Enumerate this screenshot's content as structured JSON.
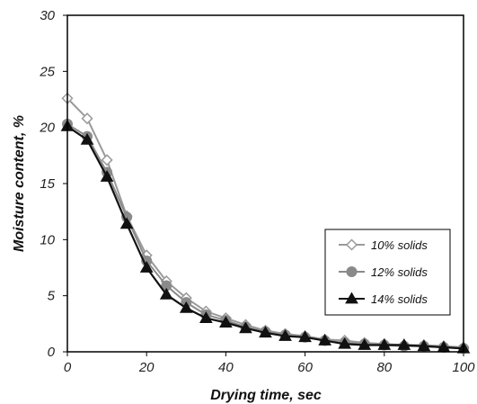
{
  "chart_data": {
    "type": "line",
    "title": "",
    "xlabel": "Drying time, sec",
    "ylabel": "Moisture content, %",
    "xlim": [
      0,
      100
    ],
    "ylim": [
      0,
      30
    ],
    "xticks": [
      "0",
      "20",
      "40",
      "60",
      "80",
      "100"
    ],
    "yticks": [
      "0",
      "5",
      "10",
      "15",
      "20",
      "25",
      "30"
    ],
    "grid": false,
    "legend_position": "right",
    "x": [
      0,
      5,
      10,
      15,
      20,
      25,
      30,
      35,
      40,
      45,
      50,
      55,
      60,
      65,
      70,
      75,
      80,
      85,
      90,
      95,
      100
    ],
    "series": [
      {
        "name": "10% solids",
        "marker": "diamond-open",
        "color": "#9a9a9a",
        "values": [
          22.6,
          20.8,
          17.1,
          12.1,
          8.6,
          6.3,
          4.8,
          3.6,
          3.0,
          2.4,
          1.9,
          1.6,
          1.4,
          1.1,
          1.0,
          0.8,
          0.7,
          0.6,
          0.6,
          0.5,
          0.4
        ]
      },
      {
        "name": "12% solids",
        "marker": "circle",
        "color": "#8a8a8a",
        "values": [
          20.3,
          19.2,
          16.0,
          12.0,
          8.1,
          5.9,
          4.4,
          3.3,
          2.8,
          2.2,
          1.8,
          1.5,
          1.3,
          1.0,
          0.8,
          0.7,
          0.6,
          0.5,
          0.5,
          0.4,
          0.3
        ]
      },
      {
        "name": "14% solids",
        "marker": "triangle",
        "color": "#111111",
        "values": [
          20.1,
          18.9,
          15.6,
          11.4,
          7.5,
          5.1,
          3.9,
          3.0,
          2.6,
          2.1,
          1.7,
          1.4,
          1.3,
          1.0,
          0.7,
          0.6,
          0.6,
          0.6,
          0.5,
          0.4,
          0.3
        ]
      }
    ]
  }
}
